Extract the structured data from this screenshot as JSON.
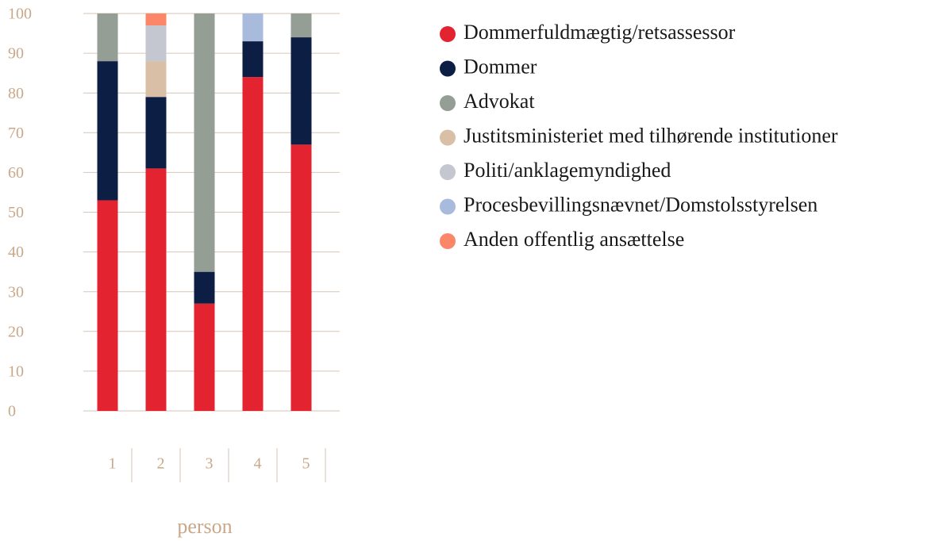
{
  "chart_data": {
    "type": "stacked_bar",
    "x_label": "person",
    "categories": [
      "1",
      "2",
      "3",
      "4",
      "5"
    ],
    "series": [
      {
        "name": "Dommerfuldmægtig/retsassessor",
        "color": "#e3232f",
        "values": [
          53,
          61,
          27,
          84,
          67
        ]
      },
      {
        "name": "Dommer",
        "color": "#0d1e45",
        "values": [
          35,
          18,
          8,
          9,
          27
        ]
      },
      {
        "name": "Advokat",
        "color": "#949e94",
        "values": [
          12,
          0,
          65,
          0,
          6
        ]
      },
      {
        "name": "Justitsministeriet med tilhørende institutioner",
        "color": "#d9bfa5",
        "values": [
          0,
          9,
          0,
          0,
          0
        ]
      },
      {
        "name": "Politi/anklagemyndighed",
        "color": "#c4c6d0",
        "values": [
          0,
          9,
          0,
          0,
          0
        ]
      },
      {
        "name": "Procesbevillingsnævnet/Domstolsstyrelsen",
        "color": "#a8bbdc",
        "values": [
          0,
          0,
          0,
          7,
          0
        ]
      },
      {
        "name": "Anden offentlig ansættelse",
        "color": "#fb8668",
        "values": [
          0,
          3,
          0,
          0,
          0
        ]
      }
    ],
    "ylim": [
      0,
      100
    ],
    "yticks": [
      0,
      10,
      20,
      30,
      40,
      50,
      60,
      70,
      80,
      90,
      100
    ],
    "grid": true,
    "legend": "right"
  }
}
